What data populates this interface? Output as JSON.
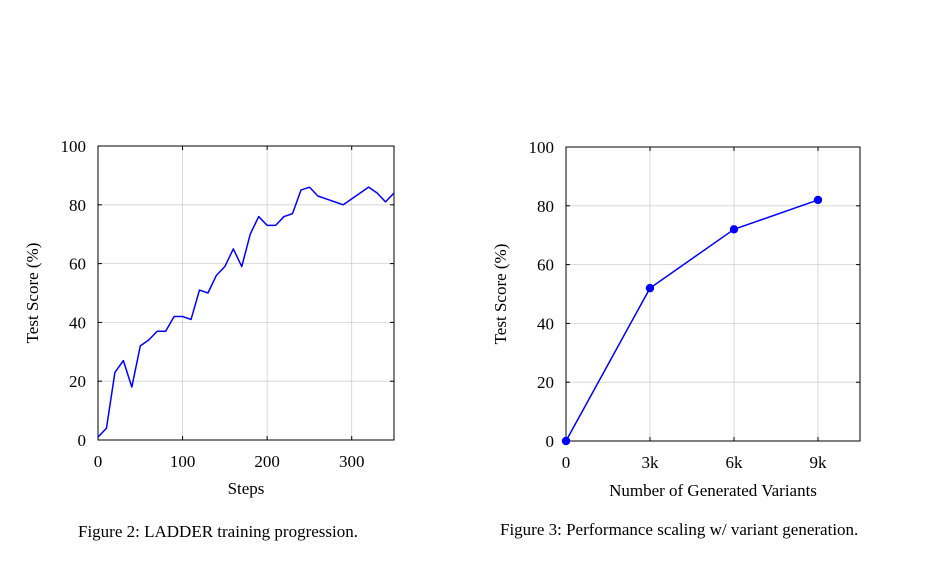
{
  "chart_data": [
    {
      "type": "line",
      "caption": "Figure 2: LADDER training progression.",
      "xlabel": "Steps",
      "ylabel": "Test Score (%)",
      "xlim": [
        0,
        350
      ],
      "ylim": [
        0,
        100
      ],
      "xticks": [
        0,
        100,
        200,
        300
      ],
      "xtick_labels": [
        "0",
        "100",
        "200",
        "300"
      ],
      "yticks": [
        0,
        20,
        40,
        60,
        80,
        100
      ],
      "ytick_labels": [
        "0",
        "20",
        "40",
        "60",
        "80",
        "100"
      ],
      "grid": true,
      "markers": false,
      "color": "#0000ff",
      "x": [
        0,
        10,
        20,
        30,
        40,
        50,
        60,
        70,
        80,
        90,
        100,
        110,
        120,
        130,
        140,
        150,
        160,
        170,
        180,
        190,
        200,
        210,
        220,
        230,
        240,
        250,
        260,
        270,
        280,
        290,
        300,
        310,
        320,
        330,
        340,
        350
      ],
      "y": [
        1,
        4,
        23,
        27,
        18,
        32,
        34,
        37,
        37,
        42,
        42,
        41,
        51,
        50,
        56,
        59,
        65,
        59,
        70,
        76,
        73,
        73,
        76,
        77,
        85,
        86,
        83,
        82,
        81,
        80,
        82,
        84,
        86,
        84,
        81,
        84
      ]
    },
    {
      "type": "line",
      "caption": "Figure 3: Performance scaling w/ variant generation.",
      "xlabel": "Number of Generated Variants",
      "ylabel": "Test Score (%)",
      "xlim": [
        0,
        10500
      ],
      "ylim": [
        0,
        100
      ],
      "xticks": [
        0,
        3000,
        6000,
        9000
      ],
      "xtick_labels": [
        "0",
        "3k",
        "6k",
        "9k"
      ],
      "yticks": [
        0,
        20,
        40,
        60,
        80,
        100
      ],
      "ytick_labels": [
        "0",
        "20",
        "40",
        "60",
        "80",
        "100"
      ],
      "grid": true,
      "markers": true,
      "color": "#0000ff",
      "x": [
        0,
        3000,
        6000,
        9000
      ],
      "y": [
        0,
        52,
        72,
        82
      ]
    }
  ]
}
